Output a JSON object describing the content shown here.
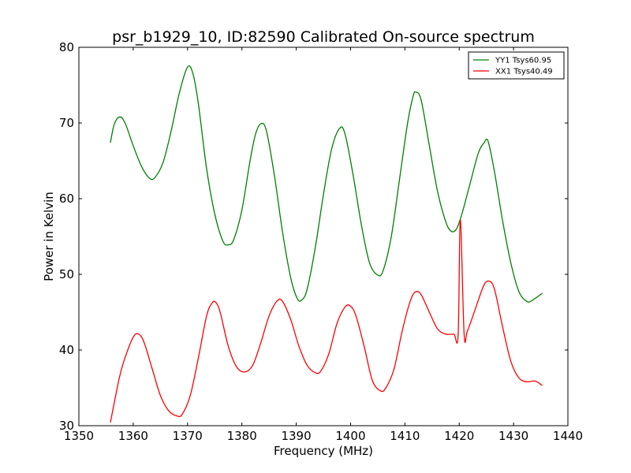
{
  "chart_data": {
    "type": "line",
    "title": "psr_b1929_10, ID:82590 Calibrated On-source spectrum",
    "xlabel": "Frequency (MHz)",
    "ylabel": "Power in Kelvin",
    "xlim": [
      1350,
      1440
    ],
    "ylim": [
      30,
      80
    ],
    "xticks": [
      1350,
      1360,
      1370,
      1380,
      1390,
      1400,
      1410,
      1420,
      1430,
      1440
    ],
    "yticks": [
      30,
      40,
      50,
      60,
      70,
      80
    ],
    "grid": false,
    "legend_position": "top-right",
    "series": [
      {
        "name": "YY1 Tsys60.95",
        "color": "#008000",
        "points": [
          [
            1355.8,
            67.4
          ],
          [
            1356.5,
            69.8
          ],
          [
            1357.5,
            70.8
          ],
          [
            1358.5,
            70.0
          ],
          [
            1360,
            67.0
          ],
          [
            1361.5,
            64.3
          ],
          [
            1363,
            62.7
          ],
          [
            1364,
            62.8
          ],
          [
            1365.5,
            64.8
          ],
          [
            1367,
            69.0
          ],
          [
            1368.5,
            74.0
          ],
          [
            1370,
            77.4
          ],
          [
            1371,
            76.5
          ],
          [
            1372,
            72.5
          ],
          [
            1373.5,
            64.0
          ],
          [
            1375,
            58.0
          ],
          [
            1376.5,
            54.4
          ],
          [
            1377.5,
            53.9
          ],
          [
            1378.5,
            54.6
          ],
          [
            1380,
            58.5
          ],
          [
            1381.5,
            65.0
          ],
          [
            1382.5,
            68.5
          ],
          [
            1383.5,
            69.9
          ],
          [
            1384.5,
            69.0
          ],
          [
            1386,
            63.0
          ],
          [
            1387.5,
            55.5
          ],
          [
            1389,
            49.5
          ],
          [
            1390.2,
            46.8
          ],
          [
            1391,
            46.6
          ],
          [
            1392,
            48.0
          ],
          [
            1393.5,
            53.5
          ],
          [
            1395,
            60.5
          ],
          [
            1396.5,
            66.5
          ],
          [
            1398,
            69.3
          ],
          [
            1399,
            68.5
          ],
          [
            1400.5,
            63.0
          ],
          [
            1402,
            56.5
          ],
          [
            1403.5,
            51.5
          ],
          [
            1405,
            49.9
          ],
          [
            1406,
            50.5
          ],
          [
            1407.5,
            55.0
          ],
          [
            1409,
            62.5
          ],
          [
            1410.5,
            70.0
          ],
          [
            1411.5,
            73.5
          ],
          [
            1412,
            74.1
          ],
          [
            1413,
            73.0
          ],
          [
            1414.5,
            67.0
          ],
          [
            1416,
            61.0
          ],
          [
            1417.5,
            57.0
          ],
          [
            1418.5,
            55.7
          ],
          [
            1419.5,
            56.0
          ],
          [
            1420.5,
            58.0
          ],
          [
            1422,
            62.0
          ],
          [
            1423.5,
            66.0
          ],
          [
            1424.5,
            67.3
          ],
          [
            1425.3,
            67.6
          ],
          [
            1426.5,
            63.5
          ],
          [
            1428,
            57.0
          ],
          [
            1429.5,
            51.5
          ],
          [
            1431,
            47.7
          ],
          [
            1432.5,
            46.4
          ],
          [
            1433.5,
            46.6
          ],
          [
            1435.3,
            47.5
          ]
        ]
      },
      {
        "name": "XX1 Tsys40.49",
        "color": "#ff0000",
        "points": [
          [
            1355.8,
            30.4
          ],
          [
            1356.5,
            33.0
          ],
          [
            1357.5,
            36.5
          ],
          [
            1358.5,
            39.0
          ],
          [
            1360,
            41.7
          ],
          [
            1361,
            42.1
          ],
          [
            1362,
            41.0
          ],
          [
            1363.5,
            37.5
          ],
          [
            1365,
            34.0
          ],
          [
            1366.5,
            32.0
          ],
          [
            1368,
            31.3
          ],
          [
            1369,
            31.5
          ],
          [
            1370.5,
            34.0
          ],
          [
            1372,
            39.0
          ],
          [
            1373.5,
            44.5
          ],
          [
            1374.5,
            46.2
          ],
          [
            1375.2,
            46.3
          ],
          [
            1376,
            45.0
          ],
          [
            1377.5,
            40.5
          ],
          [
            1379,
            37.8
          ],
          [
            1380.5,
            37.1
          ],
          [
            1382,
            38.0
          ],
          [
            1383.5,
            41.0
          ],
          [
            1385,
            44.5
          ],
          [
            1386.5,
            46.5
          ],
          [
            1387.5,
            46.4
          ],
          [
            1389,
            44.0
          ],
          [
            1390.5,
            40.5
          ],
          [
            1392,
            38.0
          ],
          [
            1393.5,
            37.0
          ],
          [
            1394.5,
            37.2
          ],
          [
            1396,
            39.5
          ],
          [
            1397.5,
            43.5
          ],
          [
            1399,
            45.7
          ],
          [
            1400,
            45.8
          ],
          [
            1401,
            44.5
          ],
          [
            1402.5,
            40.5
          ],
          [
            1404,
            36.0
          ],
          [
            1405.5,
            34.6
          ],
          [
            1406.5,
            35.0
          ],
          [
            1408,
            37.5
          ],
          [
            1409.5,
            42.5
          ],
          [
            1411,
            46.5
          ],
          [
            1412,
            47.7
          ],
          [
            1413,
            47.3
          ],
          [
            1414.5,
            45.0
          ],
          [
            1416,
            42.8
          ],
          [
            1417.5,
            42.1
          ],
          [
            1419,
            42.1
          ],
          [
            1419.8,
            42.0
          ],
          [
            1420.2,
            57.2
          ],
          [
            1420.9,
            42.1
          ],
          [
            1421.5,
            42.5
          ],
          [
            1423,
            45.5
          ],
          [
            1424.5,
            48.5
          ],
          [
            1425.5,
            49.1
          ],
          [
            1426.5,
            48.0
          ],
          [
            1428,
            43.0
          ],
          [
            1429.5,
            38.5
          ],
          [
            1431,
            36.3
          ],
          [
            1432.5,
            35.8
          ],
          [
            1434,
            35.9
          ],
          [
            1435.3,
            35.3
          ]
        ]
      }
    ]
  }
}
